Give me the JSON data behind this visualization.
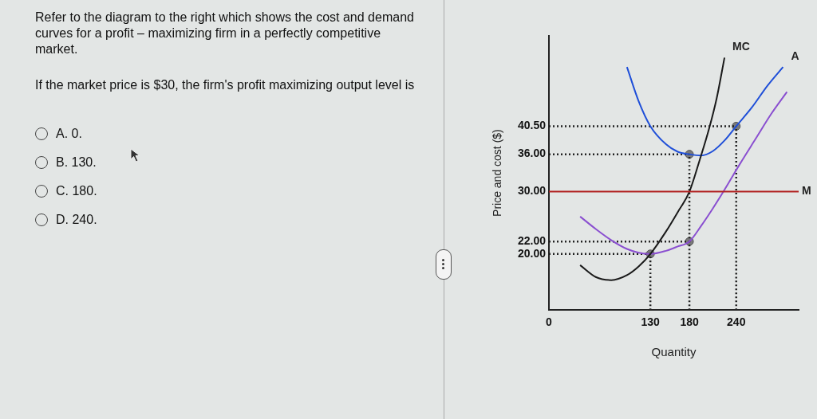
{
  "chart_data": {
    "type": "line",
    "xlabel": "Quantity",
    "ylabel": "Price and cost ($)",
    "xlim": [
      0,
      320
    ],
    "xticks": [
      0,
      130,
      180,
      240
    ],
    "ylim": [
      11,
      55
    ],
    "yticks": [
      {
        "value": 20,
        "label": "20.00"
      },
      {
        "value": 22,
        "label": "22.00"
      },
      {
        "value": 30,
        "label": "30.00"
      },
      {
        "value": 36,
        "label": "36.00"
      },
      {
        "value": 40.5,
        "label": "40.50"
      }
    ],
    "grid": false,
    "legend": false,
    "series": [
      {
        "name": "MC",
        "type": "line",
        "color": "#1a1a1a",
        "marker": "none",
        "line_style": "solid",
        "x": [
          40,
          60,
          80,
          100,
          115,
          130,
          150,
          165,
          180,
          193,
          205,
          215,
          225
        ],
        "values": [
          18.2,
          16.3,
          15.8,
          16.6,
          18,
          20,
          23.6,
          26.7,
          30,
          35,
          40,
          45,
          51.5
        ]
      },
      {
        "name": "A",
        "type": "line",
        "color": "#1f4fd8",
        "marker": "none",
        "line_style": "solid",
        "x": [
          100,
          115,
          130,
          150,
          165,
          180,
          195,
          210,
          225,
          240,
          260,
          280,
          300
        ],
        "values": [
          50,
          44.5,
          40.5,
          37.6,
          36.4,
          36,
          35.8,
          36.5,
          38.2,
          40.5,
          43.5,
          47,
          50
        ]
      },
      {
        "type": "line",
        "color": "#8a4fd0",
        "marker": "none",
        "line_style": "solid",
        "x": [
          40,
          60,
          80,
          100,
          115,
          130,
          150,
          165,
          180,
          195,
          210,
          225,
          245,
          265,
          285,
          305
        ],
        "values": [
          26,
          24,
          22.2,
          20.8,
          20.2,
          20,
          20.5,
          21.2,
          22,
          24.5,
          27.3,
          30.3,
          34.5,
          38.5,
          42.5,
          46
        ]
      },
      {
        "type": "line",
        "color": "#222222",
        "marker": "none",
        "line_style": "dotted",
        "x": [
          0,
          240
        ],
        "values": [
          40.5,
          40.5
        ]
      },
      {
        "type": "line",
        "color": "#222222",
        "marker": "none",
        "line_style": "dotted",
        "x": [
          0,
          180
        ],
        "values": [
          36,
          36
        ]
      },
      {
        "type": "line",
        "color": "#222222",
        "marker": "none",
        "line_style": "dotted",
        "x": [
          0,
          180
        ],
        "values": [
          22,
          22
        ]
      },
      {
        "type": "line",
        "color": "#222222",
        "marker": "none",
        "line_style": "dotted",
        "x": [
          0,
          130
        ],
        "values": [
          20,
          20
        ]
      },
      {
        "type": "line",
        "color": "#222222",
        "marker": "none",
        "line_style": "dotted",
        "x": [
          130,
          130
        ],
        "values": [
          11,
          20
        ]
      },
      {
        "type": "line",
        "color": "#222222",
        "marker": "none",
        "line_style": "dotted",
        "x": [
          180,
          180
        ],
        "values": [
          11,
          36
        ]
      },
      {
        "type": "line",
        "color": "#222222",
        "marker": "none",
        "line_style": "dotted",
        "x": [
          240,
          240
        ],
        "values": [
          11,
          40.5
        ]
      },
      {
        "type": "scatter",
        "color": "#7a7a7a",
        "marker": "circle",
        "x": [
          130,
          180,
          180,
          240
        ],
        "values": [
          20,
          22,
          36,
          40.5
        ]
      }
    ],
    "ref_lines": [
      {
        "axis": "y",
        "value": 30,
        "label": "M",
        "color": "#b22222",
        "line_style": "solid"
      }
    ],
    "annotations": [
      "Refer to the diagram to the right which shows the cost and demand curves for a profit – maximizing firm in a perfectly competitive market.",
      "If the market price is $30, the firm's profit maximizing output level is",
      "A. 0.",
      "B. 130.",
      "C. 180.",
      "D. 240."
    ]
  }
}
